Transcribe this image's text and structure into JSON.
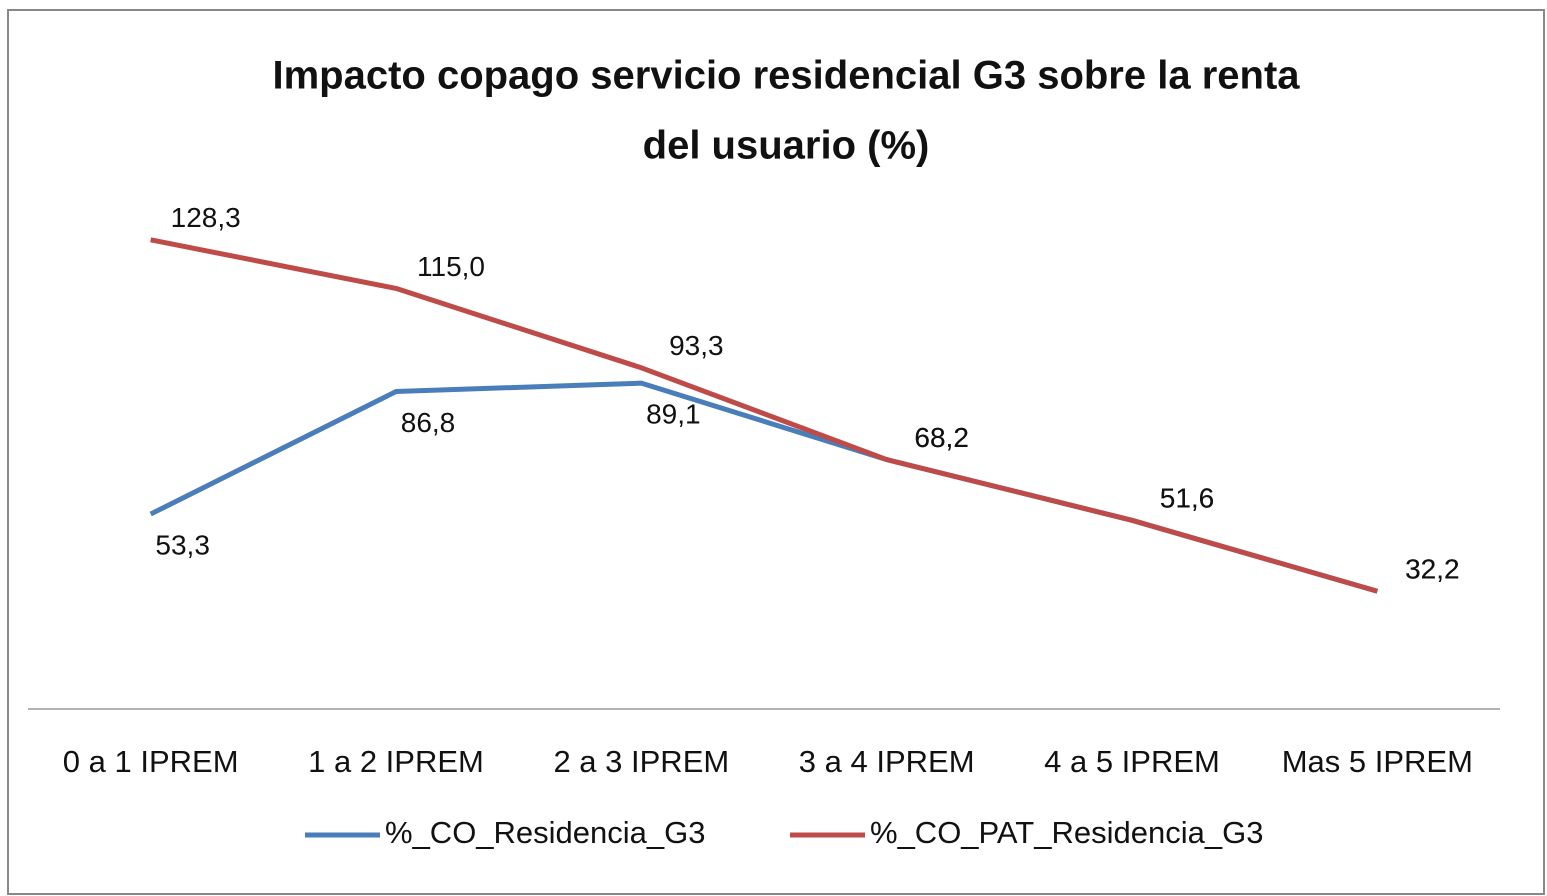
{
  "chart_data": {
    "type": "line",
    "title": [
      "Impacto copago servicio residencial G3 sobre la renta",
      "del usuario (%)"
    ],
    "categories": [
      "0 a 1 IPREM",
      "1 a 2 IPREM",
      "2 a 3 IPREM",
      "3 a 4 IPREM",
      "4 a 5 IPREM",
      "Mas 5 IPREM"
    ],
    "series": [
      {
        "name": "%_CO_Residencia_G3",
        "color": "#4a7ebb",
        "values": [
          53.3,
          86.8,
          89.1,
          68.2,
          51.6,
          32.2
        ],
        "value_labels": [
          "53,3",
          "86,8",
          "89,1",
          "68,2",
          "51,6",
          "32,2"
        ]
      },
      {
        "name": "%_CO_PAT_Residencia_G3",
        "color": "#be4b48",
        "values": [
          128.3,
          115.0,
          93.3,
          68.2,
          51.6,
          32.2
        ],
        "value_labels": [
          "128,3",
          "115,0",
          "93,3",
          "68,2",
          "51,6",
          "32,2"
        ]
      }
    ],
    "ylim": [
      0,
      140
    ],
    "legend": "bottom"
  }
}
